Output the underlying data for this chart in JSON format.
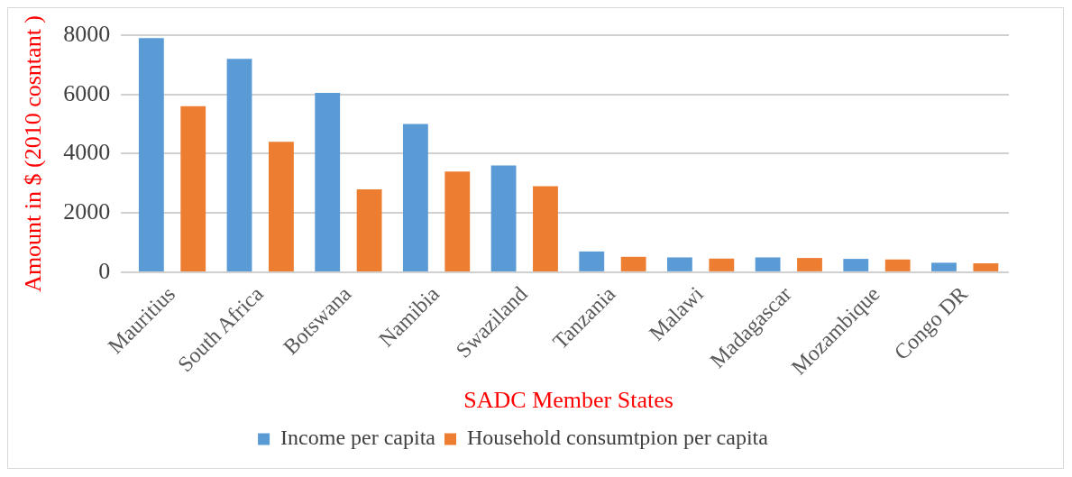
{
  "chart_data": {
    "type": "bar",
    "xlabel": "SADC Member States",
    "ylabel": "Amount in $ (2010 cosntant )",
    "categories": [
      "Mauritius",
      "South Africa",
      "Botswana",
      "Namibia",
      "Swaziland",
      "Tanzania",
      "Malawi",
      "Madagascar",
      "Mozambique",
      "Congo DR"
    ],
    "series": [
      {
        "name": "Income per capita",
        "color": "#5b9bd5",
        "values": [
          7900,
          7200,
          6050,
          5000,
          3600,
          700,
          500,
          500,
          450,
          320
        ]
      },
      {
        "name": "Household consumtpion per capita",
        "color": "#ed7d31",
        "values": [
          5600,
          4400,
          2800,
          3400,
          2900,
          520,
          460,
          480,
          430,
          300
        ]
      }
    ],
    "ylim": [
      0,
      8000
    ],
    "yticks": [
      0,
      2000,
      4000,
      6000,
      8000
    ],
    "grid": "y",
    "legend": "bottom"
  }
}
